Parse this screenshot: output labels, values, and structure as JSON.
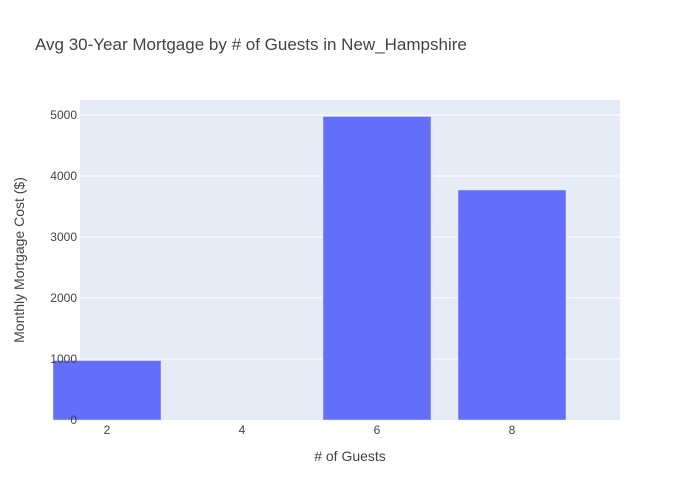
{
  "chart_data": {
    "type": "bar",
    "title": "Avg 30-Year Mortgage by # of Guests in New_Hampshire",
    "xlabel": "# of Guests",
    "ylabel": "Monthly Mortgage Cost ($)",
    "x": [
      2,
      6,
      8
    ],
    "values": [
      975,
      4975,
      3770
    ],
    "xlim": [
      1.6,
      9.6
    ],
    "ylim": [
      0,
      5245
    ],
    "xticks": [
      2,
      4,
      6,
      8
    ],
    "yticks": [
      0,
      1000,
      2000,
      3000,
      4000,
      5000
    ],
    "bar_width": 1.6,
    "grid": true,
    "bar_color": "#636efa",
    "plot_bg": "#e5ecf6",
    "grid_color": "#ffffff"
  }
}
